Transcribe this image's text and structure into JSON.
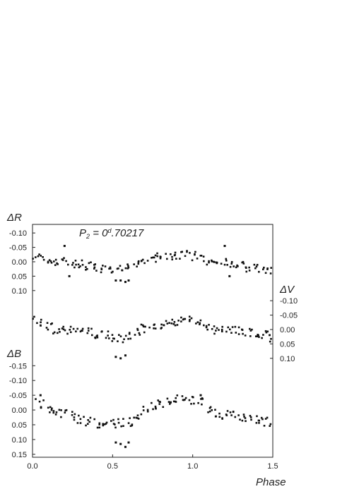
{
  "chart_data": {
    "type": "scatter",
    "title": "",
    "annotation": {
      "prefix": "P",
      "sub": "2",
      "mid": " = 0",
      "sup": "d",
      "rest": ".70217"
    },
    "xlabel": "Phase",
    "xlim": [
      0,
      1.5
    ],
    "x_ticks": [
      "0.0",
      "0.5",
      "1.0",
      "1.5"
    ],
    "grid": false,
    "series": [
      {
        "name": "ΔR",
        "axis_label": "ΔR",
        "axis_side": "left",
        "ylim": [
          -0.12,
          0.125
        ],
        "ticks": [
          "-0.10",
          "-0.05",
          "0.00",
          "0.05",
          "0.10"
        ],
        "tick_values": [
          -0.1,
          -0.05,
          0.0,
          0.05,
          0.1
        ],
        "x": [
          0.0,
          0.05,
          0.1,
          0.15,
          0.2,
          0.25,
          0.3,
          0.35,
          0.4,
          0.45,
          0.5,
          0.55,
          0.6,
          0.65,
          0.7,
          0.75,
          0.8,
          0.85,
          0.9,
          0.95,
          1.0,
          1.05,
          1.1,
          1.15,
          1.2,
          1.25,
          1.3,
          1.35,
          1.4,
          1.45,
          1.5
        ],
        "y": [
          -0.025,
          -0.02,
          -0.01,
          0.0,
          0.0,
          0.005,
          0.01,
          0.015,
          0.02,
          0.025,
          0.03,
          0.028,
          0.02,
          0.005,
          -0.005,
          -0.01,
          -0.015,
          -0.02,
          -0.025,
          -0.025,
          -0.02,
          -0.015,
          -0.005,
          0.0,
          0.005,
          0.01,
          0.015,
          0.02,
          0.025,
          0.028,
          0.03
        ],
        "outliers": [
          [
            0.52,
            0.065
          ],
          [
            0.55,
            0.065
          ],
          [
            0.58,
            0.07
          ],
          [
            0.6,
            0.065
          ],
          [
            0.2,
            -0.055
          ],
          [
            0.23,
            0.05
          ],
          [
            1.23,
            0.05
          ],
          [
            1.2,
            -0.055
          ]
        ]
      },
      {
        "name": "ΔV",
        "axis_label": "ΔV",
        "axis_side": "right",
        "ylim": [
          -0.12,
          0.125
        ],
        "ticks": [
          "-0.10",
          "-0.05",
          "0.00",
          "0.05",
          "0.10"
        ],
        "tick_values": [
          -0.1,
          -0.05,
          0.0,
          0.05,
          0.1
        ],
        "x": [
          0.0,
          0.05,
          0.1,
          0.15,
          0.2,
          0.25,
          0.3,
          0.35,
          0.4,
          0.45,
          0.5,
          0.55,
          0.6,
          0.65,
          0.7,
          0.75,
          0.8,
          0.85,
          0.9,
          0.95,
          1.0,
          1.05,
          1.1,
          1.15,
          1.2,
          1.25,
          1.3,
          1.35,
          1.4,
          1.45,
          1.5
        ],
        "y": [
          -0.03,
          -0.025,
          -0.01,
          0.0,
          0.0,
          0.002,
          0.005,
          0.01,
          0.015,
          0.02,
          0.03,
          0.032,
          0.025,
          0.01,
          -0.005,
          -0.01,
          -0.015,
          -0.02,
          -0.025,
          -0.03,
          -0.032,
          -0.025,
          -0.01,
          0.0,
          0.0,
          0.002,
          0.005,
          0.01,
          0.015,
          0.02,
          0.03
        ],
        "outliers": [
          [
            0.52,
            0.095
          ],
          [
            0.55,
            0.1
          ],
          [
            0.58,
            0.09
          ]
        ]
      },
      {
        "name": "ΔB",
        "axis_label": "ΔB",
        "axis_side": "left",
        "ylim": [
          -0.165,
          0.16
        ],
        "ticks": [
          "-0.15",
          "-0.10",
          "-0.05",
          "0.00",
          "0.05",
          "0.10",
          "0.15"
        ],
        "tick_values": [
          -0.15,
          -0.1,
          -0.05,
          0.0,
          0.05,
          0.1,
          0.15
        ],
        "x": [
          0.0,
          0.05,
          0.1,
          0.15,
          0.2,
          0.25,
          0.3,
          0.35,
          0.4,
          0.45,
          0.5,
          0.55,
          0.6,
          0.65,
          0.7,
          0.75,
          0.8,
          0.85,
          0.9,
          0.95,
          1.0,
          1.05,
          1.1,
          1.15,
          1.2,
          1.25,
          1.3,
          1.35,
          1.4,
          1.45,
          1.5
        ],
        "y": [
          -0.025,
          -0.02,
          0.0,
          0.01,
          0.015,
          0.02,
          0.03,
          0.04,
          0.045,
          0.04,
          0.045,
          0.045,
          0.04,
          0.02,
          0.0,
          -0.01,
          -0.02,
          -0.03,
          -0.035,
          -0.04,
          -0.035,
          -0.025,
          0.0,
          0.01,
          0.015,
          0.02,
          0.025,
          0.03,
          0.035,
          0.04,
          0.045
        ],
        "outliers": [
          [
            0.52,
            0.11
          ],
          [
            0.55,
            0.115
          ],
          [
            0.58,
            0.125
          ],
          [
            0.6,
            0.11
          ],
          [
            0.05,
            -0.05
          ],
          [
            1.05,
            -0.05
          ]
        ]
      }
    ]
  }
}
